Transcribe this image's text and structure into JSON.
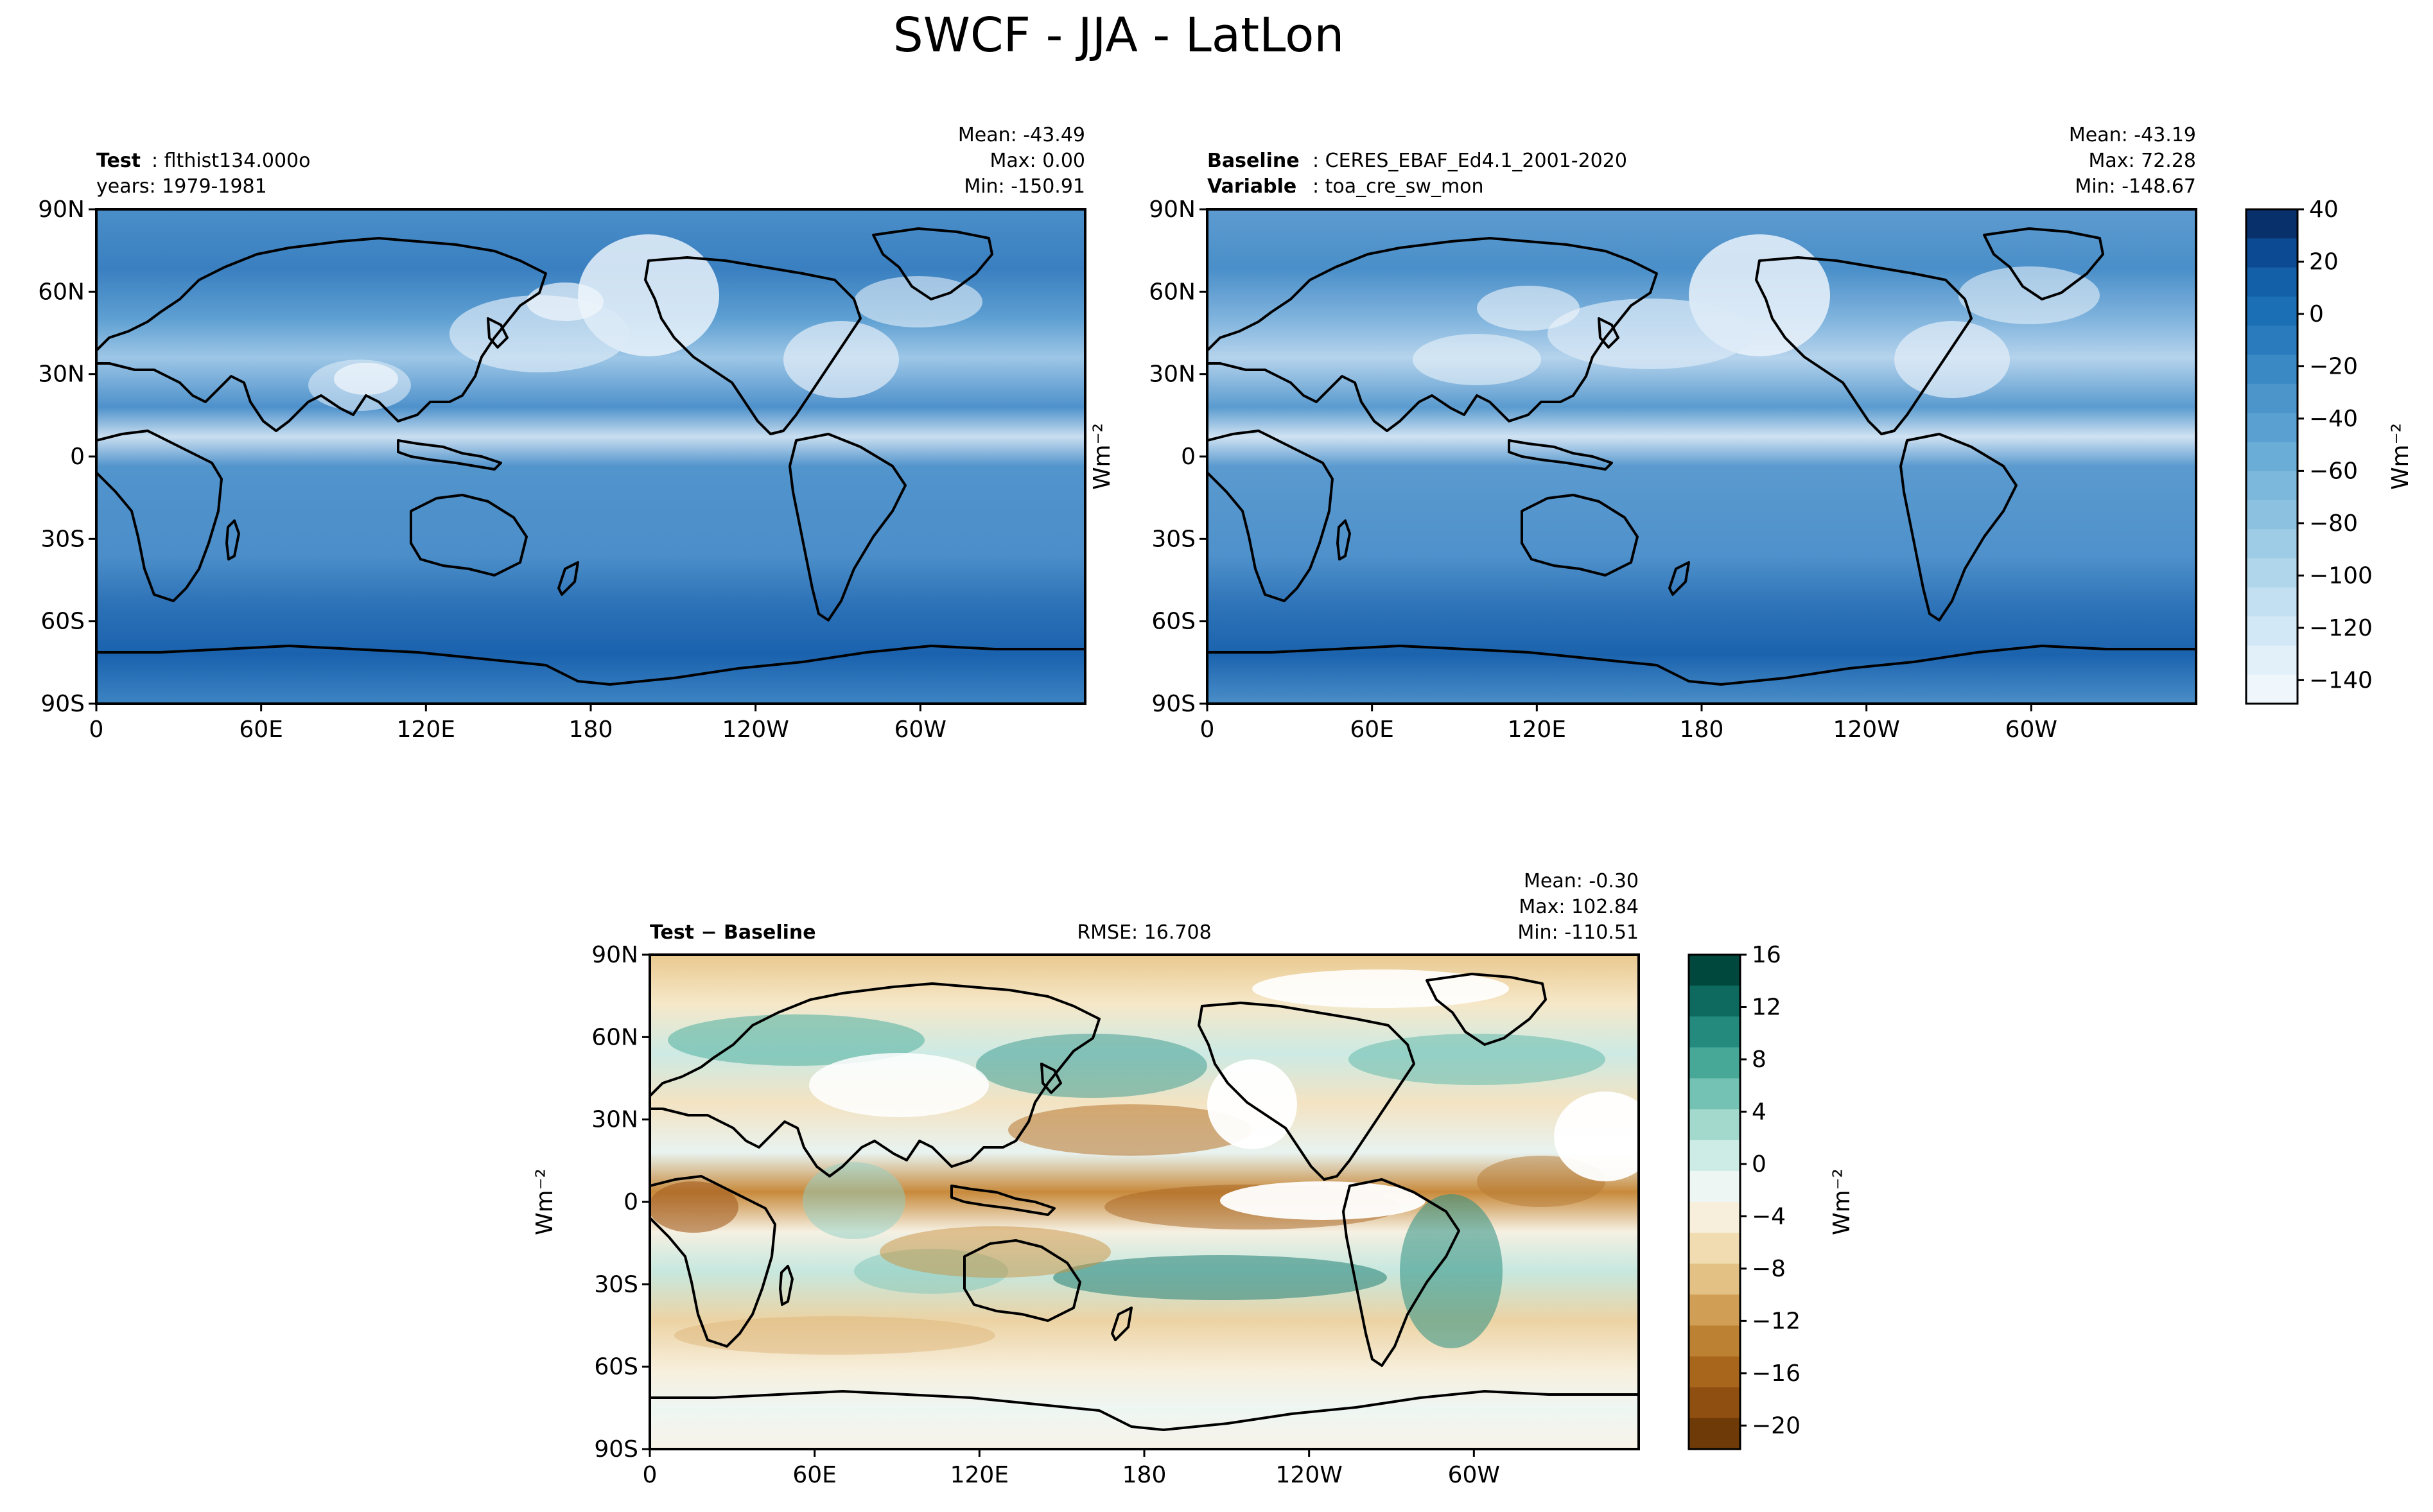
{
  "figure": {
    "title": "SWCF - JJA - LatLon"
  },
  "axes": {
    "lat_ticks": [
      "90N",
      "60N",
      "30N",
      "0",
      "30S",
      "60S",
      "90S"
    ],
    "lon_ticks": [
      "0",
      "60E",
      "120E",
      "180",
      "120W",
      "60W"
    ]
  },
  "panels": {
    "test": {
      "label_bold": "Test",
      "label_value": "flthist134.000o",
      "subline": "years: 1979-1981",
      "mean": "Mean: -43.49",
      "max": "Max:  0.00",
      "min": "Min: -150.91"
    },
    "baseline": {
      "label_bold": "Baseline",
      "label_value": "CERES_EBAF_Ed4.1_2001-2020",
      "var_bold": "Variable",
      "var_value": "toa_cre_sw_mon",
      "mean": "Mean: -43.19",
      "max": "Max: 72.28",
      "min": "Min: -148.67"
    },
    "diff": {
      "label_bold": "Test − Baseline",
      "rmse": "RMSE: 16.708",
      "mean": "Mean: -0.30",
      "max": "Max: 102.84",
      "min": "Min: -110.51"
    }
  },
  "colorbars": {
    "main": {
      "label": "Wm⁻²",
      "ticks": [
        "40",
        "20",
        "0",
        "−20",
        "−40",
        "−60",
        "−80",
        "−100",
        "−120",
        "−140"
      ]
    },
    "diff": {
      "label": "Wm⁻²",
      "ticks": [
        "16",
        "12",
        "8",
        "4",
        "0",
        "−4",
        "−8",
        "−12",
        "−16",
        "−20"
      ]
    }
  },
  "ylabel": "Wm⁻²"
}
